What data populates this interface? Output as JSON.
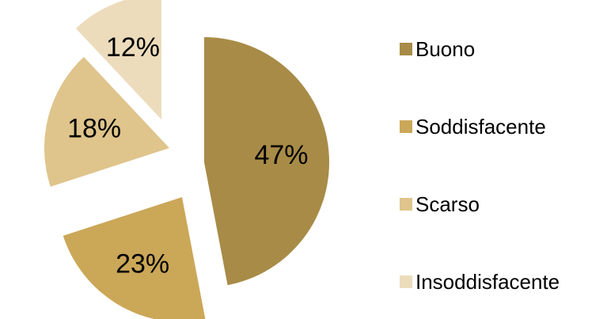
{
  "chart_data": {
    "type": "pie",
    "exploded": true,
    "legend_position": "right",
    "slices": [
      {
        "label": "Buono",
        "value": 47,
        "display": "47%",
        "color": "#a88b47"
      },
      {
        "label": "Soddisfacente",
        "value": 23,
        "display": "23%",
        "color": "#cba758"
      },
      {
        "label": "Scarso",
        "value": 18,
        "display": "18%",
        "color": "#dfc48b"
      },
      {
        "label": "Insoddisfacente",
        "value": 12,
        "display": "12%",
        "color": "#ecdcbc"
      }
    ]
  }
}
